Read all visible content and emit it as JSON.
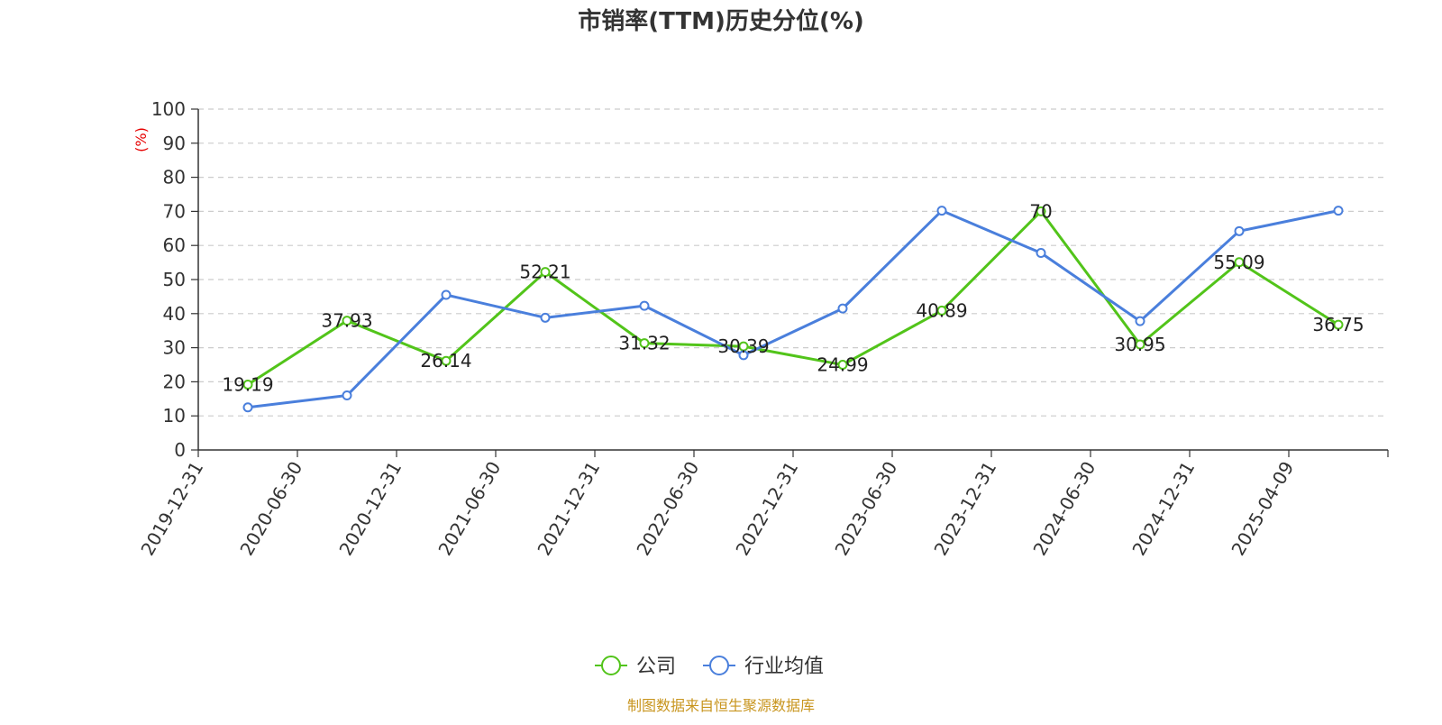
{
  "chart_data": {
    "type": "line",
    "title": "市销率(TTM)历史分位(%)",
    "y_unit_label": "(%)",
    "categories": [
      "2019-12-31",
      "2020-06-30",
      "2020-12-31",
      "2021-06-30",
      "2021-12-31",
      "2022-06-30",
      "2022-12-31",
      "2023-06-30",
      "2023-12-31",
      "2024-06-30",
      "2024-12-31",
      "2025-04-09"
    ],
    "series": [
      {
        "name": "公司",
        "color": "#52c41a",
        "show_labels": true,
        "values": [
          19.19,
          37.93,
          26.14,
          52.21,
          31.32,
          30.39,
          24.99,
          40.89,
          70,
          30.95,
          55.09,
          36.75
        ]
      },
      {
        "name": "行业均值",
        "color": "#4a7fdc",
        "show_labels": false,
        "values": [
          12.5,
          16,
          45.5,
          38.8,
          42.3,
          27.8,
          41.5,
          70.2,
          57.8,
          37.8,
          64.2,
          70.2
        ]
      }
    ],
    "ylim": [
      0,
      100
    ],
    "yticks": [
      0,
      10,
      20,
      30,
      40,
      50,
      60,
      70,
      80,
      90,
      100
    ],
    "grid": true,
    "legend_position": "bottom-center",
    "source": "制图数据来自恒生聚源数据库"
  }
}
